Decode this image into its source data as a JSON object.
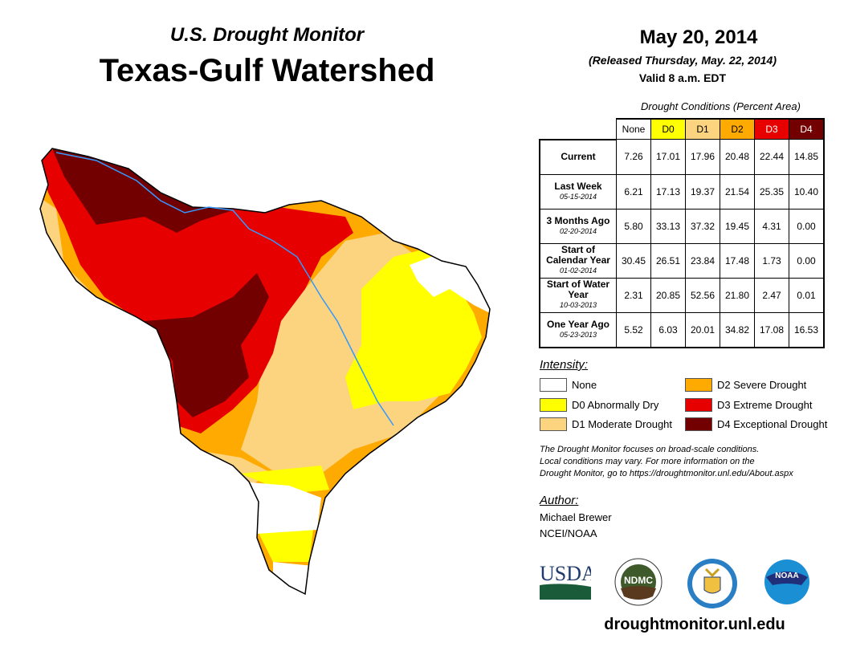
{
  "header": {
    "subtitle": "U.S. Drought Monitor",
    "title": "Texas-Gulf Watershed",
    "date": "May 20, 2014",
    "released": "(Released Thursday, May. 22, 2014)",
    "valid": "Valid 8 a.m. EDT"
  },
  "table": {
    "caption": "Drought Conditions (Percent Area)",
    "columns": [
      "None",
      "D0",
      "D1",
      "D2",
      "D3",
      "D4"
    ],
    "rows": [
      {
        "label": "Current",
        "date": "",
        "values": [
          "7.26",
          "17.01",
          "17.96",
          "20.48",
          "22.44",
          "14.85"
        ]
      },
      {
        "label": "Last Week",
        "date": "05-15-2014",
        "values": [
          "6.21",
          "17.13",
          "19.37",
          "21.54",
          "25.35",
          "10.40"
        ]
      },
      {
        "label": "3 Months Ago",
        "date": "02-20-2014",
        "values": [
          "5.80",
          "33.13",
          "37.32",
          "19.45",
          "4.31",
          "0.00"
        ]
      },
      {
        "label": "Start of Calendar Year",
        "date": "01-02-2014",
        "values": [
          "30.45",
          "26.51",
          "23.84",
          "17.48",
          "1.73",
          "0.00"
        ]
      },
      {
        "label": "Start of Water Year",
        "date": "10-03-2013",
        "values": [
          "2.31",
          "20.85",
          "52.56",
          "21.80",
          "2.47",
          "0.01"
        ]
      },
      {
        "label": "One Year Ago",
        "date": "05-23-2013",
        "values": [
          "5.52",
          "6.03",
          "20.01",
          "34.82",
          "17.08",
          "16.53"
        ]
      }
    ]
  },
  "colors": {
    "none": "#ffffff",
    "d0": "#ffff00",
    "d1": "#fcd37f",
    "d2": "#ffaa00",
    "d3": "#e60000",
    "d4": "#730000",
    "river": "#3399ff"
  },
  "legend": {
    "title": "Intensity:",
    "items": [
      "None",
      "D0 Abnormally Dry",
      "D1 Moderate Drought",
      "D2 Severe Drought",
      "D3 Extreme Drought",
      "D4 Exceptional Drought"
    ]
  },
  "note": [
    "The Drought Monitor focuses on broad-scale conditions.",
    "Local conditions may vary. For more information on the",
    "Drought Monitor, go to https://droughtmonitor.unl.edu/About.aspx"
  ],
  "author": {
    "title": "Author:",
    "name": "Michael Brewer",
    "org": "NCEI/NOAA"
  },
  "logos": {
    "usda": "USDA",
    "ndmc": "NDMC",
    "noaa": "NOAA"
  },
  "url": "droughtmonitor.unl.edu"
}
